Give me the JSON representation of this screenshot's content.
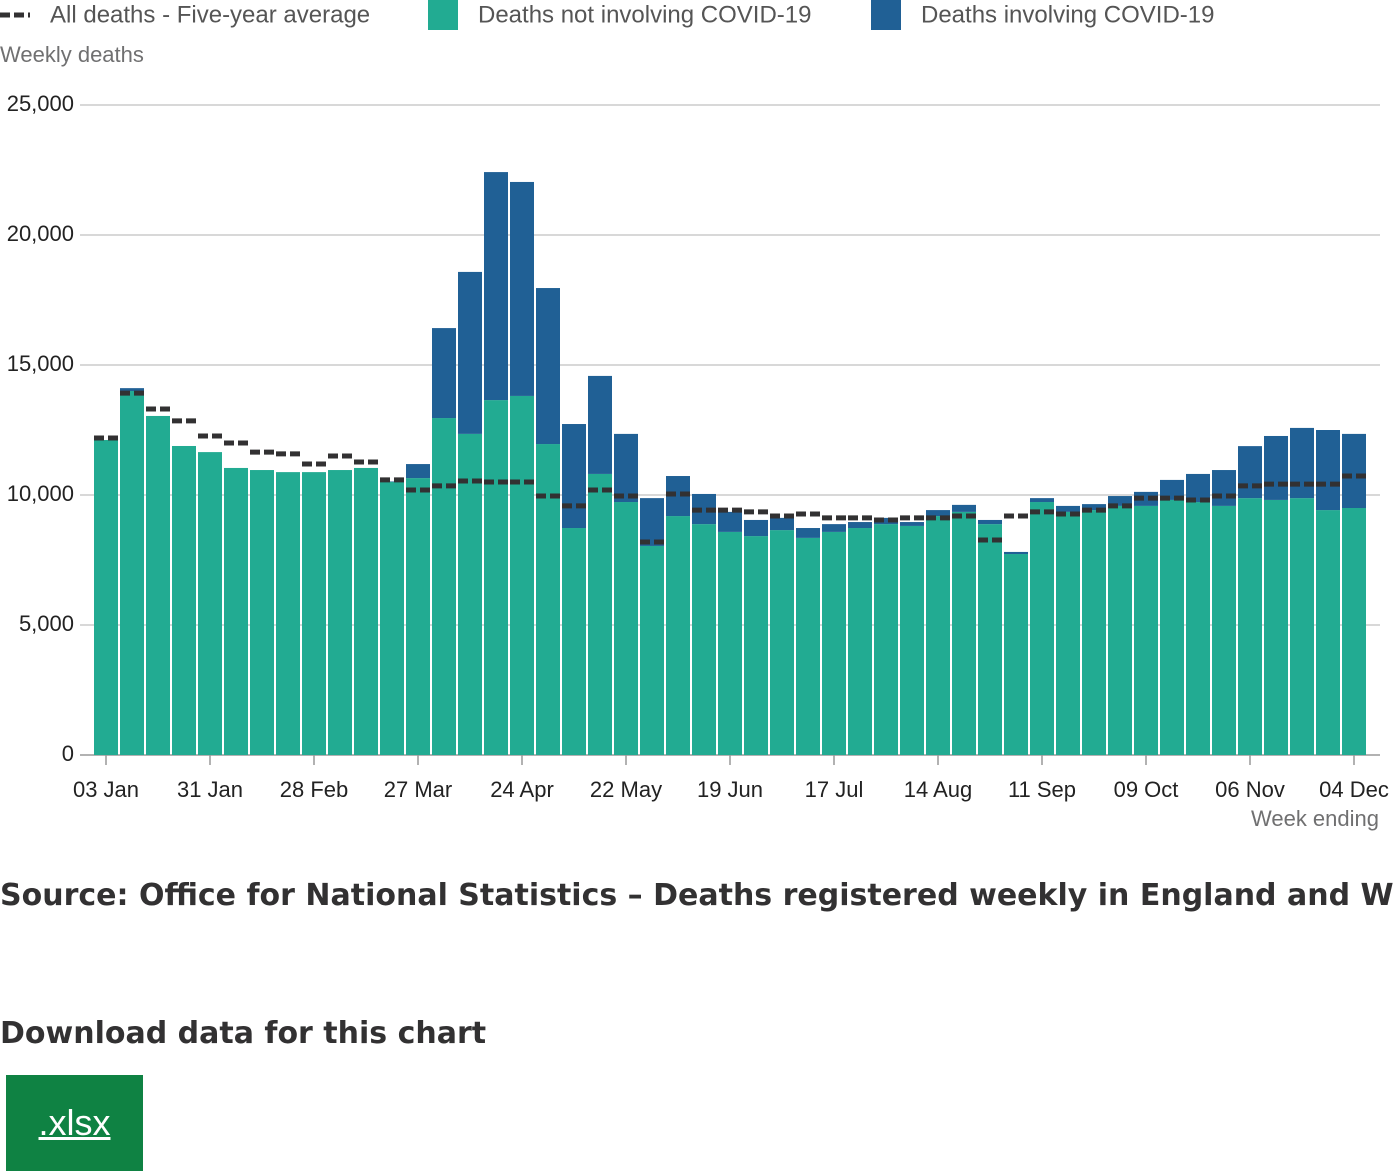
{
  "chart_data": {
    "type": "bar",
    "stacked": true,
    "y_label": "Weekly deaths",
    "x_label": "Week ending",
    "categories": [
      "03 Jan",
      null,
      null,
      null,
      "31 Jan",
      null,
      null,
      null,
      "28 Feb",
      null,
      null,
      null,
      "27 Mar",
      null,
      null,
      null,
      "24 Apr",
      null,
      null,
      null,
      "22 May",
      null,
      null,
      null,
      "19 Jun",
      null,
      null,
      null,
      "17 Jul",
      null,
      null,
      null,
      "14 Aug",
      null,
      null,
      null,
      "11 Sep",
      null,
      null,
      null,
      "09 Oct",
      null,
      null,
      null,
      "06 Nov",
      null,
      null,
      null,
      "04 Dec"
    ],
    "series": [
      {
        "name": "All deaths - Five-year average",
        "kind": "dash",
        "color": "#323132",
        "values": [
          12190,
          13920,
          13310,
          12850,
          12270,
          12000,
          11650,
          11580,
          11190,
          11500,
          11270,
          10580,
          10190,
          10350,
          10540,
          10500,
          10500,
          9960,
          9580,
          10190,
          9960,
          8190,
          10040,
          9420,
          9420,
          9350,
          9190,
          9270,
          9120,
          9120,
          9040,
          9120,
          9120,
          9190,
          8270,
          9190,
          9350,
          9270,
          9420,
          9580,
          9880,
          9880,
          9810,
          9960,
          10350,
          10420,
          10420,
          10420,
          10730
        ]
      },
      {
        "name": "Deaths not involving COVID-19",
        "kind": "bar",
        "color": "#22ab92",
        "values": [
          12115,
          14000,
          13040,
          11885,
          11650,
          11040,
          10960,
          10880,
          10880,
          10960,
          11040,
          10500,
          10650,
          12960,
          12350,
          13650,
          13810,
          11960,
          8730,
          10810,
          9730,
          8040,
          9190,
          8880,
          8580,
          8420,
          8650,
          8350,
          8580,
          8730,
          8880,
          8810,
          9190,
          9350,
          8880,
          7730,
          9730,
          9350,
          9420,
          9580,
          9580,
          9810,
          9730,
          9580,
          9880,
          9810,
          9880,
          9420,
          9500
        ]
      },
      {
        "name": "Deaths involving COVID-19",
        "kind": "bar",
        "color": "#206095",
        "values": [
          0,
          110,
          0,
          0,
          0,
          0,
          0,
          0,
          0,
          0,
          0,
          20,
          540,
          3460,
          6230,
          8770,
          8230,
          6000,
          4000,
          3770,
          2620,
          1840,
          1540,
          1160,
          770,
          620,
          470,
          380,
          300,
          230,
          240,
          150,
          230,
          270,
          160,
          80,
          150,
          230,
          230,
          380,
          540,
          770,
          1080,
          1380,
          2000,
          2460,
          2700,
          3080,
          2850
        ]
      }
    ],
    "ylim": [
      0,
      25000
    ],
    "yticks": [
      0,
      {
        "value": 5000,
        "label": "5,000"
      },
      {
        "value": 10000,
        "label": "10,000"
      },
      {
        "value": 15000,
        "label": "15,000"
      },
      {
        "value": 20000,
        "label": "20,000"
      },
      {
        "value": 25000,
        "label": "25,000"
      }
    ],
    "grid": true,
    "legend": "top"
  },
  "source": "Source: Office for National Statistics – Deaths registered weekly in England and Wales",
  "download": {
    "heading": "Download data for this chart",
    "button": ".xlsx"
  }
}
